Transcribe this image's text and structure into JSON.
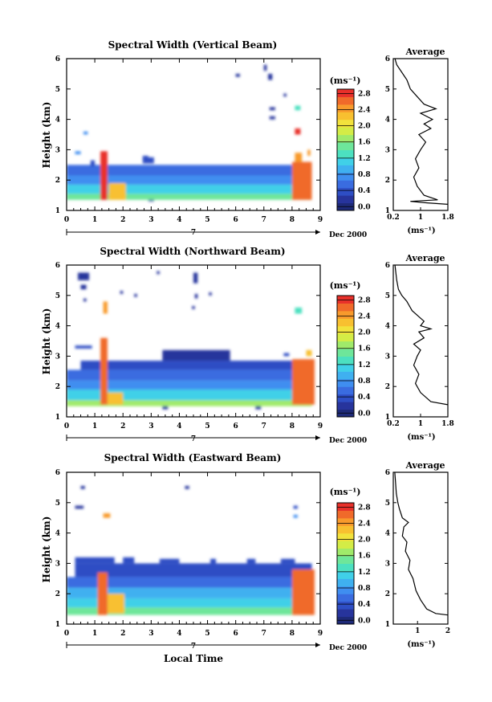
{
  "chart_data": [
    {
      "type": "heatmap",
      "title": "Spectral Width (Vertical Beam)",
      "ylabel": "Height (km)",
      "xlim": [
        0,
        9
      ],
      "ylim": [
        1,
        6
      ],
      "x_ticks": [
        "0",
        "1",
        "2",
        "3",
        "4",
        "5",
        "6",
        "7",
        "8",
        "9"
      ],
      "y_ticks": [
        "1",
        "2",
        "3",
        "4",
        "5",
        "6"
      ],
      "date_day": "7",
      "date_label": "Dec 2000",
      "colorbar": {
        "label": "(ms⁻¹)",
        "ticks": [
          "0.0",
          "0.4",
          "0.8",
          "1.2",
          "1.6",
          "2.0",
          "2.4",
          "2.8"
        ],
        "range": [
          0,
          3.0
        ]
      },
      "profile": {
        "title": "Average",
        "xlabel": "(ms⁻¹)",
        "x_ticks": [
          "0.2",
          "1",
          "1.8"
        ],
        "xlim": [
          0.2,
          1.8
        ],
        "ylim": [
          1,
          6
        ],
        "points": [
          [
            1.8,
            1.2
          ],
          [
            1.2,
            1.25
          ],
          [
            0.7,
            1.3
          ],
          [
            1.5,
            1.35
          ],
          [
            1.1,
            1.5
          ],
          [
            0.9,
            1.8
          ],
          [
            0.8,
            2.1
          ],
          [
            0.95,
            2.4
          ],
          [
            0.85,
            2.7
          ],
          [
            1.0,
            3.0
          ],
          [
            1.15,
            3.25
          ],
          [
            0.95,
            3.5
          ],
          [
            1.3,
            3.7
          ],
          [
            1.1,
            3.85
          ],
          [
            1.35,
            4.0
          ],
          [
            1.0,
            4.2
          ],
          [
            1.45,
            4.35
          ],
          [
            1.1,
            4.5
          ],
          [
            0.9,
            4.75
          ],
          [
            0.7,
            5.0
          ],
          [
            0.6,
            5.3
          ],
          [
            0.45,
            5.55
          ],
          [
            0.3,
            5.8
          ],
          [
            0.25,
            6.0
          ]
        ]
      },
      "blobs": [
        {
          "x": [
            0,
            8.7
          ],
          "y": [
            1.35,
            1.55
          ],
          "v": 1.6
        },
        {
          "x": [
            0,
            8.7
          ],
          "y": [
            1.55,
            1.85
          ],
          "v": 1.3
        },
        {
          "x": [
            0,
            8.7
          ],
          "y": [
            1.85,
            2.15
          ],
          "v": 0.9
        },
        {
          "x": [
            0,
            8.7
          ],
          "y": [
            2.15,
            2.5
          ],
          "v": 0.6
        },
        {
          "x": [
            1.2,
            1.45
          ],
          "y": [
            1.35,
            2.95
          ],
          "v": 2.9
        },
        {
          "x": [
            1.5,
            2.1
          ],
          "y": [
            1.35,
            1.9
          ],
          "v": 2.3
        },
        {
          "x": [
            8.0,
            8.7
          ],
          "y": [
            1.35,
            2.6
          ],
          "v": 2.8
        },
        {
          "x": [
            8.1,
            8.35
          ],
          "y": [
            2.6,
            2.9
          ],
          "v": 2.6
        },
        {
          "x": [
            8.1,
            8.3
          ],
          "y": [
            3.5,
            3.7
          ],
          "v": 2.9
        },
        {
          "x": [
            8.55,
            8.65
          ],
          "y": [
            2.8,
            3.0
          ],
          "v": 2.5
        },
        {
          "x": [
            7.2,
            7.4
          ],
          "y": [
            4.0,
            4.1
          ],
          "v": 0.3
        },
        {
          "x": [
            7.2,
            7.4
          ],
          "y": [
            4.3,
            4.4
          ],
          "v": 0.3
        },
        {
          "x": [
            7.0,
            7.1
          ],
          "y": [
            5.6,
            5.8
          ],
          "v": 0.3
        },
        {
          "x": [
            6.0,
            6.15
          ],
          "y": [
            5.4,
            5.5
          ],
          "v": 0.3
        },
        {
          "x": [
            7.15,
            7.3
          ],
          "y": [
            5.3,
            5.5
          ],
          "v": 0.2
        },
        {
          "x": [
            7.7,
            7.8
          ],
          "y": [
            4.75,
            4.85
          ],
          "v": 0.3
        },
        {
          "x": [
            8.1,
            8.3
          ],
          "y": [
            4.3,
            4.45
          ],
          "v": 1.4
        },
        {
          "x": [
            0.3,
            0.5
          ],
          "y": [
            2.85,
            2.95
          ],
          "v": 0.8
        },
        {
          "x": [
            2.7,
            2.9
          ],
          "y": [
            2.7,
            2.8
          ],
          "v": 0.5
        },
        {
          "x": [
            2.7,
            3.1
          ],
          "y": [
            2.55,
            2.75
          ],
          "v": 0.5
        },
        {
          "x": [
            2.9,
            3.1
          ],
          "y": [
            1.3,
            1.35
          ],
          "v": 0.3
        },
        {
          "x": [
            0.85,
            1.0
          ],
          "y": [
            2.45,
            2.65
          ],
          "v": 0.4
        },
        {
          "x": [
            0.6,
            0.75
          ],
          "y": [
            3.5,
            3.6
          ],
          "v": 0.8
        }
      ],
      "gaps": []
    },
    {
      "type": "heatmap",
      "title": "Spectral Width (Northward Beam)",
      "ylabel": "Height (km)",
      "xlim": [
        0,
        9
      ],
      "ylim": [
        1,
        6
      ],
      "x_ticks": [
        "0",
        "1",
        "2",
        "3",
        "4",
        "5",
        "6",
        "7",
        "8",
        "9"
      ],
      "y_ticks": [
        "1",
        "2",
        "3",
        "4",
        "5",
        "6"
      ],
      "date_day": "7",
      "date_label": "Dec 2000",
      "colorbar": {
        "label": "(ms⁻¹)",
        "ticks": [
          "0.0",
          "0.4",
          "0.8",
          "1.2",
          "1.6",
          "2.0",
          "2.4",
          "2.8"
        ],
        "range": [
          0,
          3.0
        ]
      },
      "profile": {
        "title": "Average",
        "xlabel": "(ms⁻¹)",
        "x_ticks": [
          "0.2",
          "1",
          "1.8"
        ],
        "xlim": [
          0.2,
          1.8
        ],
        "ylim": [
          1,
          6
        ],
        "points": [
          [
            1.8,
            1.4
          ],
          [
            1.3,
            1.5
          ],
          [
            1.0,
            1.8
          ],
          [
            0.85,
            2.1
          ],
          [
            0.95,
            2.4
          ],
          [
            0.8,
            2.7
          ],
          [
            0.9,
            3.0
          ],
          [
            1.0,
            3.2
          ],
          [
            0.8,
            3.4
          ],
          [
            1.1,
            3.6
          ],
          [
            0.95,
            3.8
          ],
          [
            1.3,
            3.9
          ],
          [
            1.0,
            4.0
          ],
          [
            1.1,
            4.15
          ],
          [
            0.95,
            4.3
          ],
          [
            0.75,
            4.5
          ],
          [
            0.6,
            4.8
          ],
          [
            0.45,
            5.0
          ],
          [
            0.35,
            5.2
          ],
          [
            0.3,
            5.5
          ],
          [
            0.25,
            6.0
          ]
        ]
      },
      "blobs": [
        {
          "x": [
            0,
            8.7
          ],
          "y": [
            1.35,
            1.55
          ],
          "v": 1.7
        },
        {
          "x": [
            0,
            8.7
          ],
          "y": [
            1.55,
            1.9
          ],
          "v": 1.3
        },
        {
          "x": [
            0,
            8.7
          ],
          "y": [
            1.9,
            2.2
          ],
          "v": 0.9
        },
        {
          "x": [
            0,
            8.7
          ],
          "y": [
            2.2,
            2.55
          ],
          "v": 0.6
        },
        {
          "x": [
            0.5,
            8.7
          ],
          "y": [
            2.55,
            2.85
          ],
          "v": 0.4
        },
        {
          "x": [
            1.2,
            1.45
          ],
          "y": [
            1.4,
            3.6
          ],
          "v": 2.8
        },
        {
          "x": [
            1.45,
            2.0
          ],
          "y": [
            1.4,
            1.8
          ],
          "v": 2.3
        },
        {
          "x": [
            8.0,
            8.8
          ],
          "y": [
            1.4,
            2.9
          ],
          "v": 2.7
        },
        {
          "x": [
            8.1,
            8.35
          ],
          "y": [
            4.4,
            4.6
          ],
          "v": 1.4
        },
        {
          "x": [
            1.3,
            1.45
          ],
          "y": [
            4.4,
            4.8
          ],
          "v": 2.6
        },
        {
          "x": [
            0.4,
            0.8
          ],
          "y": [
            5.5,
            5.75
          ],
          "v": 0.2
        },
        {
          "x": [
            0.5,
            0.7
          ],
          "y": [
            5.2,
            5.35
          ],
          "v": 0.2
        },
        {
          "x": [
            0.6,
            0.7
          ],
          "y": [
            4.8,
            4.9
          ],
          "v": 0.2
        },
        {
          "x": [
            1.9,
            2.0
          ],
          "y": [
            5.05,
            5.15
          ],
          "v": 0.2
        },
        {
          "x": [
            2.4,
            2.5
          ],
          "y": [
            4.95,
            5.05
          ],
          "v": 0.3
        },
        {
          "x": [
            3.2,
            3.3
          ],
          "y": [
            5.7,
            5.8
          ],
          "v": 0.3
        },
        {
          "x": [
            4.5,
            4.65
          ],
          "y": [
            5.4,
            5.75
          ],
          "v": 0.2
        },
        {
          "x": [
            4.55,
            4.65
          ],
          "y": [
            4.9,
            5.05
          ],
          "v": 0.3
        },
        {
          "x": [
            4.45,
            4.55
          ],
          "y": [
            4.55,
            4.65
          ],
          "v": 0.3
        },
        {
          "x": [
            5.05,
            5.15
          ],
          "y": [
            5.0,
            5.1
          ],
          "v": 0.3
        },
        {
          "x": [
            3.4,
            5.8
          ],
          "y": [
            2.85,
            3.2
          ],
          "v": 0.35
        },
        {
          "x": [
            0.3,
            0.9
          ],
          "y": [
            3.25,
            3.35
          ],
          "v": 0.4
        },
        {
          "x": [
            8.5,
            8.7
          ],
          "y": [
            3.0,
            3.2
          ],
          "v": 2.4
        },
        {
          "x": [
            7.7,
            7.9
          ],
          "y": [
            3.0,
            3.1
          ],
          "v": 0.4
        },
        {
          "x": [
            3.4,
            3.6
          ],
          "y": [
            1.25,
            1.35
          ],
          "v": 0.3
        },
        {
          "x": [
            6.7,
            6.9
          ],
          "y": [
            1.25,
            1.35
          ],
          "v": 0.3
        }
      ],
      "gaps": []
    },
    {
      "type": "heatmap",
      "title": "Spectral Width (Eastward Beam)",
      "ylabel": "Height (km)",
      "xlabel": "Local Time",
      "xlim": [
        0,
        9
      ],
      "ylim": [
        1,
        6
      ],
      "x_ticks": [
        "0",
        "1",
        "2",
        "3",
        "4",
        "5",
        "6",
        "7",
        "8",
        "9"
      ],
      "y_ticks": [
        "1",
        "2",
        "3",
        "4",
        "5",
        "6"
      ],
      "date_day": "7",
      "date_label": "Dec 2000",
      "colorbar": {
        "label": "(ms⁻¹)",
        "ticks": [
          "0.0",
          "0.4",
          "0.8",
          "1.2",
          "1.6",
          "2.0",
          "2.4",
          "2.8"
        ],
        "range": [
          0,
          3.0
        ]
      },
      "profile": {
        "title": "Average",
        "xlabel": "(ms⁻¹)",
        "x_ticks": [
          "1",
          "2"
        ],
        "xlim": [
          0.2,
          2.0
        ],
        "ylim": [
          1,
          6
        ],
        "points": [
          [
            2.0,
            1.3
          ],
          [
            1.6,
            1.35
          ],
          [
            1.3,
            1.5
          ],
          [
            1.1,
            1.8
          ],
          [
            0.95,
            2.1
          ],
          [
            0.85,
            2.5
          ],
          [
            0.7,
            2.8
          ],
          [
            0.75,
            3.1
          ],
          [
            0.6,
            3.4
          ],
          [
            0.65,
            3.7
          ],
          [
            0.5,
            3.9
          ],
          [
            0.55,
            4.2
          ],
          [
            0.7,
            4.35
          ],
          [
            0.5,
            4.5
          ],
          [
            0.4,
            4.8
          ],
          [
            0.35,
            5.0
          ],
          [
            0.3,
            5.3
          ],
          [
            0.28,
            5.6
          ],
          [
            0.25,
            6.0
          ]
        ]
      },
      "blobs": [
        {
          "x": [
            0,
            8.7
          ],
          "y": [
            1.3,
            1.55
          ],
          "v": 1.6
        },
        {
          "x": [
            0,
            8.7
          ],
          "y": [
            1.55,
            1.85
          ],
          "v": 1.3
        },
        {
          "x": [
            0,
            8.7
          ],
          "y": [
            1.85,
            2.2
          ],
          "v": 0.95
        },
        {
          "x": [
            0,
            8.7
          ],
          "y": [
            2.2,
            2.55
          ],
          "v": 0.6
        },
        {
          "x": [
            0.3,
            8.7
          ],
          "y": [
            2.55,
            3.0
          ],
          "v": 0.4
        },
        {
          "x": [
            1.1,
            1.45
          ],
          "y": [
            1.3,
            2.7
          ],
          "v": 2.8
        },
        {
          "x": [
            1.45,
            2.05
          ],
          "y": [
            1.35,
            2.0
          ],
          "v": 2.3
        },
        {
          "x": [
            8.0,
            8.8
          ],
          "y": [
            1.3,
            2.8
          ],
          "v": 2.7
        },
        {
          "x": [
            1.3,
            1.55
          ],
          "y": [
            4.5,
            4.65
          ],
          "v": 2.6
        },
        {
          "x": [
            0.5,
            0.65
          ],
          "y": [
            5.45,
            5.55
          ],
          "v": 0.2
        },
        {
          "x": [
            0.3,
            0.6
          ],
          "y": [
            4.8,
            4.9
          ],
          "v": 0.3
        },
        {
          "x": [
            4.2,
            4.35
          ],
          "y": [
            5.45,
            5.55
          ],
          "v": 0.3
        },
        {
          "x": [
            8.05,
            8.2
          ],
          "y": [
            4.8,
            4.9
          ],
          "v": 0.5
        },
        {
          "x": [
            8.05,
            8.2
          ],
          "y": [
            4.5,
            4.6
          ],
          "v": 0.8
        },
        {
          "x": [
            0.3,
            1.7
          ],
          "y": [
            3.0,
            3.2
          ],
          "v": 0.5
        },
        {
          "x": [
            2.0,
            2.4
          ],
          "y": [
            3.0,
            3.2
          ],
          "v": 0.5
        },
        {
          "x": [
            3.3,
            4.0
          ],
          "y": [
            3.0,
            3.15
          ],
          "v": 0.5
        },
        {
          "x": [
            5.1,
            5.3
          ],
          "y": [
            3.0,
            3.15
          ],
          "v": 0.5
        },
        {
          "x": [
            6.4,
            6.7
          ],
          "y": [
            3.0,
            3.15
          ],
          "v": 0.5
        },
        {
          "x": [
            7.6,
            8.1
          ],
          "y": [
            3.0,
            3.15
          ],
          "v": 0.5
        }
      ],
      "gaps": []
    }
  ]
}
